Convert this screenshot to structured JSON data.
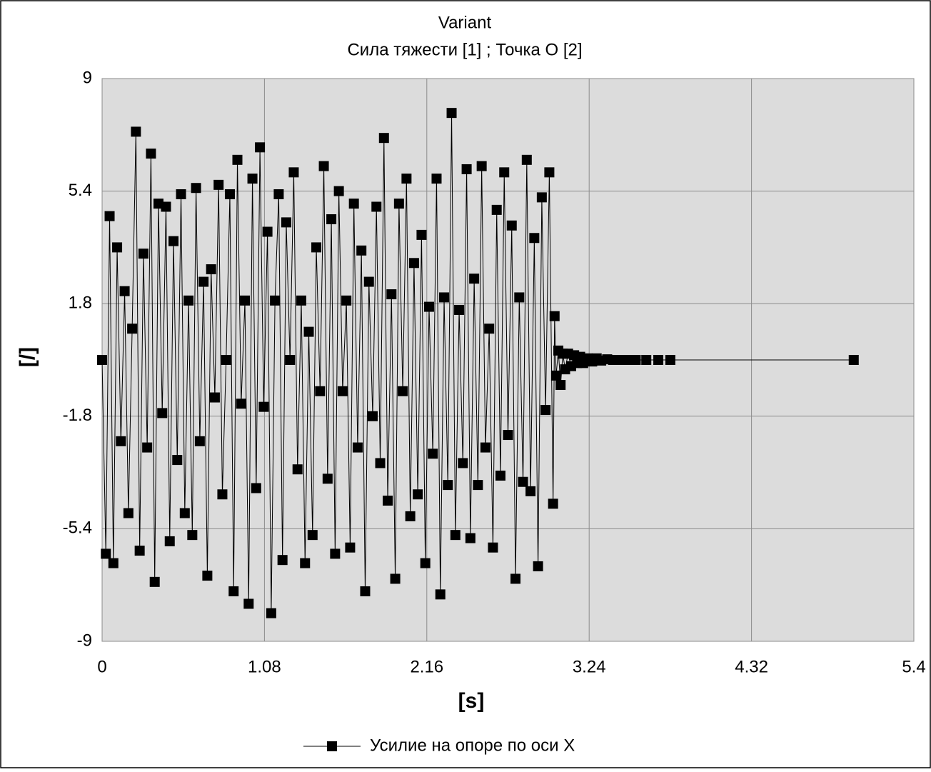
{
  "chart_data": {
    "type": "line",
    "title": "Variant",
    "subtitle": "Сила тяжести [1] ; Точка O [2]",
    "x_label": "[s]",
    "y_label": "[/]",
    "x": [
      0,
      0.025,
      0.05,
      0.075,
      0.1,
      0.125,
      0.15,
      0.175,
      0.2,
      0.225,
      0.25,
      0.275,
      0.3,
      0.325,
      0.35,
      0.375,
      0.4,
      0.425,
      0.45,
      0.475,
      0.5,
      0.525,
      0.55,
      0.575,
      0.6,
      0.625,
      0.65,
      0.675,
      0.7,
      0.725,
      0.75,
      0.775,
      0.8,
      0.825,
      0.85,
      0.875,
      0.9,
      0.925,
      0.95,
      0.975,
      1,
      1.025,
      1.05,
      1.075,
      1.1,
      1.125,
      1.15,
      1.175,
      1.2,
      1.225,
      1.25,
      1.275,
      1.3,
      1.325,
      1.35,
      1.375,
      1.4,
      1.425,
      1.45,
      1.475,
      1.5,
      1.525,
      1.55,
      1.575,
      1.6,
      1.625,
      1.65,
      1.675,
      1.7,
      1.725,
      1.75,
      1.775,
      1.8,
      1.825,
      1.85,
      1.875,
      1.9,
      1.925,
      1.95,
      1.975,
      2,
      2.025,
      2.05,
      2.075,
      2.1,
      2.125,
      2.15,
      2.175,
      2.2,
      2.225,
      2.25,
      2.275,
      2.3,
      2.325,
      2.35,
      2.375,
      2.4,
      2.425,
      2.45,
      2.475,
      2.5,
      2.525,
      2.55,
      2.575,
      2.6,
      2.625,
      2.65,
      2.675,
      2.7,
      2.725,
      2.75,
      2.775,
      2.8,
      2.825,
      2.85,
      2.875,
      2.9,
      2.925,
      2.95,
      2.975,
      3,
      3.01,
      3.02,
      3.035,
      3.05,
      3.065,
      3.08,
      3.1,
      3.12,
      3.14,
      3.16,
      3.18,
      3.2,
      3.23,
      3.26,
      3.29,
      3.32,
      3.36,
      3.4,
      3.45,
      3.5,
      3.55,
      3.62,
      3.7,
      3.78,
      5.0
    ],
    "series": [
      {
        "name": "Усилие на опоре по оси X",
        "color": "#000000",
        "values": [
          0,
          -6.2,
          4.6,
          -6.5,
          3.6,
          -2.6,
          2.2,
          -4.9,
          1.0,
          7.3,
          -6.1,
          3.4,
          -2.8,
          6.6,
          -7.1,
          5.0,
          -1.7,
          4.9,
          -5.8,
          3.8,
          -3.2,
          5.3,
          -4.9,
          1.9,
          -5.6,
          5.5,
          -2.6,
          2.5,
          -6.9,
          2.9,
          -1.2,
          5.6,
          -4.3,
          0,
          5.3,
          -7.4,
          6.4,
          -1.4,
          1.9,
          -7.8,
          5.8,
          -4.1,
          6.8,
          -1.5,
          4.1,
          -8.1,
          1.9,
          5.3,
          -6.4,
          4.4,
          0,
          6.0,
          -3.5,
          1.9,
          -6.5,
          0.9,
          -5.6,
          3.6,
          -1.0,
          6.2,
          -3.8,
          4.5,
          -6.2,
          5.4,
          -1.0,
          1.9,
          -6.0,
          5.0,
          -2.8,
          3.5,
          -7.4,
          2.5,
          -1.8,
          4.9,
          -3.3,
          7.1,
          -4.5,
          2.1,
          -7.0,
          5.0,
          -1.0,
          5.8,
          -5.0,
          3.1,
          -4.3,
          4.0,
          -6.5,
          1.7,
          -3.0,
          5.8,
          -7.5,
          2.0,
          -4.0,
          7.9,
          -5.6,
          1.6,
          -3.3,
          6.1,
          -5.7,
          2.6,
          -4.0,
          6.2,
          -2.8,
          1.0,
          -6.0,
          4.8,
          -3.7,
          6.0,
          -2.4,
          4.3,
          -7.0,
          2.0,
          -3.9,
          6.4,
          -4.2,
          3.9,
          -6.6,
          5.2,
          -1.6,
          6.0,
          -4.6,
          1.4,
          -0.5,
          0.3,
          -0.8,
          0.2,
          -0.3,
          0.2,
          -0.2,
          0.15,
          -0.1,
          0.1,
          -0.1,
          0.05,
          -0.05,
          0.05,
          -0.02,
          0.02,
          0,
          0,
          0,
          0,
          0,
          0,
          0,
          0
        ]
      }
    ],
    "xlim": [
      0,
      5.4
    ],
    "xticks": [
      0,
      1.08,
      2.16,
      3.24,
      4.32,
      5.4
    ],
    "ylim": [
      -9,
      9
    ],
    "yticks": [
      -9,
      -5.4,
      -1.8,
      1.8,
      5.4,
      9
    ],
    "grid": true,
    "legend": "bottom"
  }
}
